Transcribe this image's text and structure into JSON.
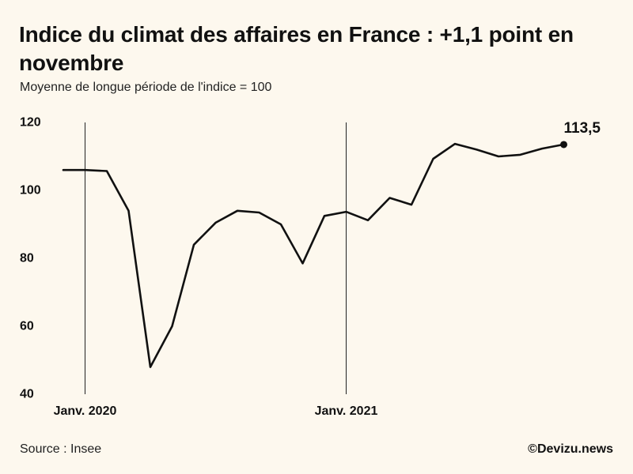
{
  "chart_data": {
    "type": "line",
    "title": "Indice du climat des affaires en France : +1,1 point en novembre",
    "subtitle": "Moyenne de longue période de l'indice = 100",
    "x": [
      "2019-12",
      "2020-01",
      "2020-02",
      "2020-03",
      "2020-04",
      "2020-05",
      "2020-06",
      "2020-07",
      "2020-08",
      "2020-09",
      "2020-10",
      "2020-11",
      "2020-12",
      "2021-01",
      "2021-02",
      "2021-03",
      "2021-04",
      "2021-05",
      "2021-06",
      "2021-07",
      "2021-08",
      "2021-09",
      "2021-10",
      "2021-11"
    ],
    "series": [
      {
        "values": [
          106,
          106,
          105.7,
          94,
          48,
          60,
          84,
          90.5,
          94,
          93.5,
          90,
          78.5,
          92.5,
          93.7,
          91.2,
          97.8,
          95.8,
          109.3,
          113.7,
          112,
          110,
          110.5,
          112.3,
          113.5
        ]
      }
    ],
    "ylim": [
      40,
      120
    ],
    "yticks": [
      "120",
      "100",
      "80",
      "60",
      "40"
    ],
    "xticks": [
      {
        "x": "2020-01",
        "label": "Janv. 2020"
      },
      {
        "x": "2021-01",
        "label": "Janv. 2021"
      }
    ],
    "reference_lines": [
      "2020-01",
      "2021-01"
    ],
    "end_label": "113,5",
    "grid": false,
    "legend": "none",
    "line_color": "#111111",
    "background_color": "#fdf8ee"
  },
  "footer": {
    "source": "Source : Insee",
    "credit": "©Devizu.news"
  }
}
